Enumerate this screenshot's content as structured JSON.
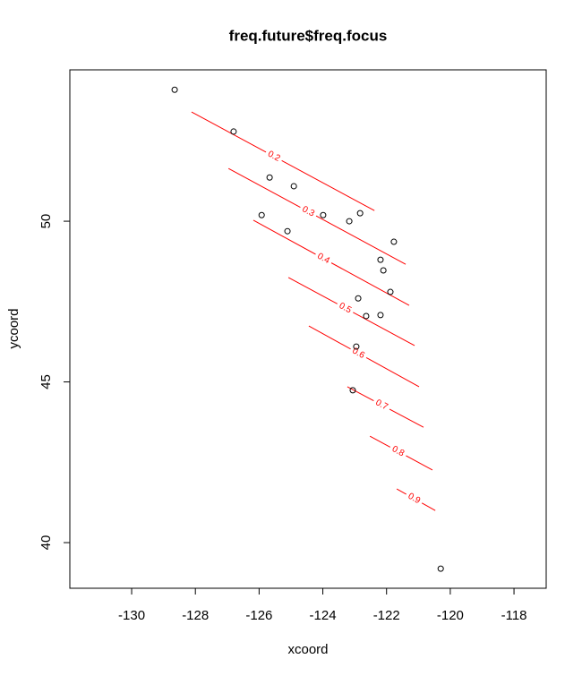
{
  "chart_data": {
    "type": "scatter",
    "title": "freq.future$freq.focus",
    "x_label": "xcoord",
    "y_label": "ycoord",
    "xlim": [
      -131.94,
      -116.99
    ],
    "ylim": [
      38.58,
      54.71
    ],
    "xticks": [
      -130,
      -128,
      -126,
      -124,
      -122,
      -120,
      -118
    ],
    "yticks": [
      40,
      45,
      50
    ],
    "point_color": "#000000",
    "contour_color": "#ff0000",
    "x": [
      -128.65,
      -126.8,
      -125.67,
      -124.91,
      -125.92,
      -125.11,
      -123.99,
      -123.17,
      -122.83,
      -121.77,
      -122.19,
      -122.1,
      -121.88,
      -122.89,
      -122.64,
      -122.19,
      -122.95,
      -123.06,
      -120.3
    ],
    "y": [
      54.09,
      52.79,
      51.36,
      51.09,
      50.19,
      49.69,
      50.19,
      50.0,
      50.25,
      49.36,
      48.8,
      48.47,
      47.8,
      47.6,
      47.05,
      47.08,
      46.1,
      44.74,
      39.19
    ],
    "contours": [
      {
        "level": 0.2,
        "x": [
          -128.12,
          -122.38
        ],
        "y": [
          53.4,
          50.33
        ]
      },
      {
        "level": 0.3,
        "x": [
          -126.96,
          -121.4
        ],
        "y": [
          51.64,
          48.66
        ]
      },
      {
        "level": 0.4,
        "x": [
          -126.18,
          -121.29
        ],
        "y": [
          50.03,
          47.38
        ]
      },
      {
        "level": 0.5,
        "x": [
          -125.08,
          -121.12
        ],
        "y": [
          48.25,
          46.13
        ]
      },
      {
        "level": 0.6,
        "x": [
          -124.44,
          -120.98
        ],
        "y": [
          46.74,
          44.85
        ]
      },
      {
        "level": 0.7,
        "x": [
          -123.23,
          -120.84
        ],
        "y": [
          44.85,
          43.59
        ]
      },
      {
        "level": 0.8,
        "x": [
          -122.52,
          -120.56
        ],
        "y": [
          43.31,
          42.26
        ]
      },
      {
        "level": 0.9,
        "x": [
          -121.68,
          -120.47
        ],
        "y": [
          41.67,
          41.0
        ]
      }
    ]
  }
}
